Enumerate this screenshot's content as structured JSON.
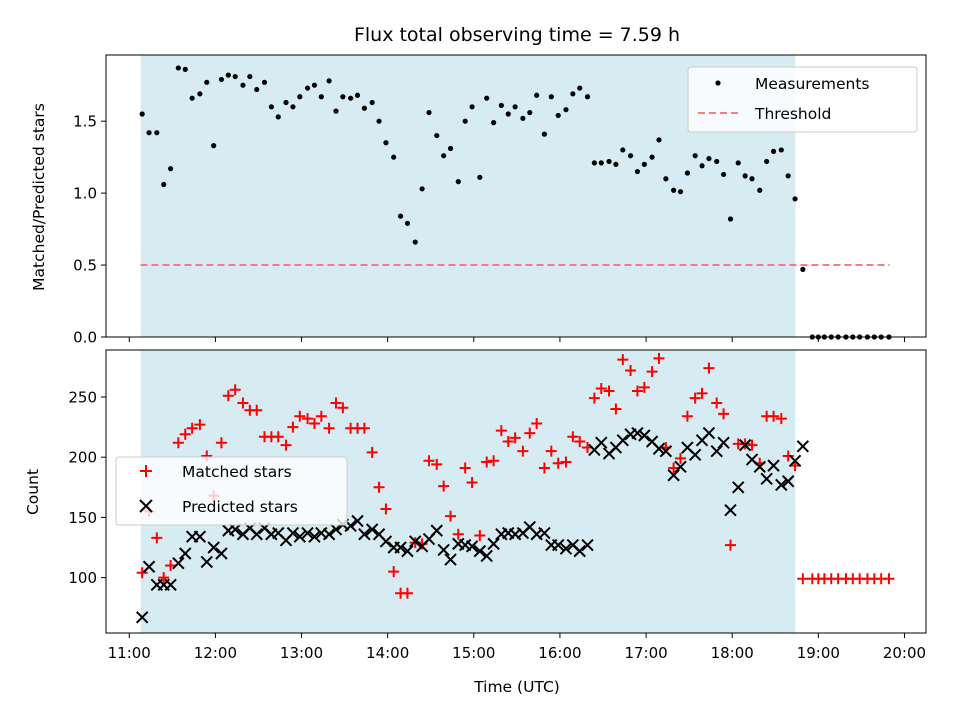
{
  "chart_data": {
    "title": "Flux total observing time = 7.59 h",
    "shaded_interval": {
      "start": 11.133,
      "end": 18.733,
      "color": "#add8e6",
      "opacity": 0.5
    },
    "xlabel": "Time (UTC)",
    "xlim": [
      10.73,
      20.25
    ],
    "xticks": [
      {
        "value": 11,
        "label": "11:00"
      },
      {
        "value": 12,
        "label": "12:00"
      },
      {
        "value": 13,
        "label": "13:00"
      },
      {
        "value": 14,
        "label": "14:00"
      },
      {
        "value": 15,
        "label": "15:00"
      },
      {
        "value": 16,
        "label": "16:00"
      },
      {
        "value": 17,
        "label": "17:00"
      },
      {
        "value": 18,
        "label": "18:00"
      },
      {
        "value": 19,
        "label": "19:00"
      },
      {
        "value": 20,
        "label": "20:00"
      }
    ],
    "panels": [
      {
        "type": "scatter",
        "ylabel": "Matched/Predicted stars",
        "ylim": [
          0,
          1.96
        ],
        "yticks": [
          {
            "value": 0,
            "label": "0.0"
          },
          {
            "value": 0.5,
            "label": "0.5"
          },
          {
            "value": 1,
            "label": "1.0"
          },
          {
            "value": 1.5,
            "label": "1.5"
          }
        ],
        "legend": {
          "position": "top-right",
          "entries": [
            "Measurements",
            "Threshold"
          ]
        },
        "threshold": {
          "name": "Threshold",
          "value": 0.5,
          "x": [
            11.13,
            19.83
          ],
          "color": "#f08080",
          "dash": "dashed"
        },
        "series": [
          {
            "name": "Measurements",
            "marker": "dot",
            "color": "#000000",
            "x": [
              11.15,
              11.23,
              11.32,
              11.4,
              11.48,
              11.57,
              11.65,
              11.73,
              11.82,
              11.9,
              11.98,
              12.07,
              12.15,
              12.23,
              12.32,
              12.4,
              12.48,
              12.57,
              12.65,
              12.73,
              12.82,
              12.9,
              12.98,
              13.07,
              13.15,
              13.23,
              13.32,
              13.4,
              13.48,
              13.57,
              13.65,
              13.73,
              13.82,
              13.9,
              13.98,
              14.07,
              14.15,
              14.23,
              14.32,
              14.4,
              14.48,
              14.57,
              14.65,
              14.73,
              14.82,
              14.9,
              14.98,
              15.07,
              15.15,
              15.23,
              15.32,
              15.4,
              15.48,
              15.57,
              15.65,
              15.73,
              15.82,
              15.9,
              15.98,
              16.07,
              16.15,
              16.23,
              16.32,
              16.4,
              16.48,
              16.57,
              16.65,
              16.73,
              16.82,
              16.9,
              16.98,
              17.07,
              17.15,
              17.23,
              17.32,
              17.4,
              17.48,
              17.57,
              17.65,
              17.73,
              17.82,
              17.9,
              17.98,
              18.07,
              18.15,
              18.23,
              18.32,
              18.4,
              18.48,
              18.57,
              18.65,
              18.73,
              18.82,
              18.93,
              19.0,
              19.07,
              19.15,
              19.23,
              19.32,
              19.4,
              19.48,
              19.57,
              19.65,
              19.73,
              19.82
            ],
            "y": [
              1.55,
              1.42,
              1.42,
              1.06,
              1.17,
              1.87,
              1.86,
              1.66,
              1.69,
              1.77,
              1.33,
              1.79,
              1.82,
              1.81,
              1.75,
              1.81,
              1.72,
              1.77,
              1.6,
              1.53,
              1.63,
              1.6,
              1.67,
              1.73,
              1.75,
              1.67,
              1.78,
              1.57,
              1.67,
              1.66,
              1.68,
              1.59,
              1.63,
              1.5,
              1.35,
              1.25,
              0.84,
              0.79,
              0.66,
              1.03,
              1.56,
              1.4,
              1.26,
              1.31,
              1.08,
              1.5,
              1.6,
              1.11,
              1.66,
              1.49,
              1.61,
              1.55,
              1.6,
              1.52,
              1.56,
              1.68,
              1.41,
              1.67,
              1.54,
              1.58,
              1.69,
              1.73,
              1.67,
              1.21,
              1.21,
              1.22,
              1.2,
              1.3,
              1.26,
              1.15,
              1.2,
              1.25,
              1.37,
              1.1,
              1.02,
              1.01,
              1.14,
              1.26,
              1.19,
              1.24,
              1.22,
              1.13,
              0.82,
              1.21,
              1.12,
              1.1,
              1.02,
              1.22,
              1.29,
              1.3,
              1.12,
              0.96,
              0.47,
              0.0,
              0.0,
              0.0,
              0.0,
              0.0,
              0.0,
              0.0,
              0.0,
              0.0,
              0.0,
              0.0,
              0.0
            ]
          }
        ]
      },
      {
        "type": "scatter",
        "ylabel": "Count",
        "ylim": [
          54,
          289
        ],
        "yticks": [
          {
            "value": 100,
            "label": "100"
          },
          {
            "value": 150,
            "label": "150"
          },
          {
            "value": 200,
            "label": "200"
          },
          {
            "value": 250,
            "label": "250"
          }
        ],
        "legend": {
          "position": "center-left",
          "entries": [
            "Matched stars",
            "Predicted stars"
          ]
        },
        "series": [
          {
            "name": "Matched stars",
            "marker": "plus",
            "color": "#ff0000",
            "x": [
              11.15,
              11.23,
              11.32,
              11.4,
              11.48,
              11.57,
              11.65,
              11.73,
              11.82,
              11.9,
              11.98,
              12.07,
              12.15,
              12.23,
              12.32,
              12.4,
              12.48,
              12.57,
              12.65,
              12.73,
              12.82,
              12.9,
              12.98,
              13.07,
              13.15,
              13.23,
              13.32,
              13.4,
              13.48,
              13.57,
              13.65,
              13.73,
              13.82,
              13.9,
              13.98,
              14.07,
              14.15,
              14.23,
              14.32,
              14.4,
              14.48,
              14.57,
              14.65,
              14.73,
              14.82,
              14.9,
              14.98,
              15.07,
              15.15,
              15.23,
              15.32,
              15.4,
              15.48,
              15.57,
              15.65,
              15.73,
              15.82,
              15.9,
              15.98,
              16.07,
              16.15,
              16.23,
              16.32,
              16.4,
              16.48,
              16.57,
              16.65,
              16.73,
              16.82,
              16.9,
              16.98,
              17.07,
              17.15,
              17.23,
              17.32,
              17.4,
              17.48,
              17.57,
              17.65,
              17.73,
              17.82,
              17.9,
              17.98,
              18.07,
              18.15,
              18.23,
              18.32,
              18.4,
              18.48,
              18.57,
              18.65,
              18.73,
              18.82,
              18.93,
              19.0,
              19.07,
              19.15,
              19.23,
              19.32,
              19.4,
              19.48,
              19.57,
              19.65,
              19.73,
              19.82
            ],
            "y": [
              104,
              155,
              133,
              100,
              110,
              212,
              219,
              224,
              227,
              201,
              168,
              212,
              251,
              256,
              245,
              239,
              239,
              217,
              217,
              217,
              210,
              225,
              234,
              232,
              228,
              234,
              224,
              245,
              241,
              224,
              224,
              224,
              204,
              175,
              157,
              105,
              87,
              87,
              129,
              128,
              197,
              194,
              176,
              151,
              136,
              191,
              179,
              135,
              196,
              197,
              222,
              213,
              216,
              205,
              220,
              228,
              191,
              205,
              195,
              196,
              217,
              213,
              208,
              249,
              257,
              255,
              240,
              281,
              272,
              255,
              258,
              271,
              282,
              208,
              191,
              199,
              234,
              249,
              253,
              274,
              245,
              236,
              127,
              211,
              211,
              210,
              195,
              234,
              234,
              232,
              201,
              193,
              99,
              99,
              99,
              99,
              99,
              99,
              99,
              99,
              99,
              99,
              99,
              99,
              99
            ]
          },
          {
            "name": "Predicted stars",
            "marker": "x",
            "color": "#000000",
            "x": [
              11.15,
              11.23,
              11.32,
              11.4,
              11.48,
              11.57,
              11.65,
              11.73,
              11.82,
              11.9,
              11.98,
              12.07,
              12.15,
              12.23,
              12.32,
              12.4,
              12.48,
              12.57,
              12.65,
              12.73,
              12.82,
              12.9,
              12.98,
              13.07,
              13.15,
              13.23,
              13.32,
              13.4,
              13.48,
              13.57,
              13.65,
              13.73,
              13.82,
              13.9,
              13.98,
              14.07,
              14.15,
              14.23,
              14.32,
              14.4,
              14.48,
              14.57,
              14.65,
              14.73,
              14.82,
              14.9,
              14.98,
              15.07,
              15.15,
              15.23,
              15.32,
              15.4,
              15.48,
              15.57,
              15.65,
              15.73,
              15.82,
              15.9,
              15.98,
              16.07,
              16.15,
              16.23,
              16.32,
              16.4,
              16.48,
              16.57,
              16.65,
              16.73,
              16.82,
              16.9,
              16.98,
              17.07,
              17.15,
              17.23,
              17.32,
              17.4,
              17.48,
              17.57,
              17.65,
              17.73,
              17.82,
              17.9,
              17.98,
              18.07,
              18.15,
              18.23,
              18.32,
              18.4,
              18.48,
              18.57,
              18.65,
              18.73,
              18.82
            ],
            "y": [
              67,
              109,
              94,
              94,
              94,
              112,
              120,
              134,
              134,
              113,
              125,
              120,
              139,
              140,
              136,
              141,
              136,
              141,
              136,
              137,
              131,
              137,
              134,
              137,
              134,
              137,
              136,
              140,
              144,
              143,
              147,
              136,
              140,
              136,
              130,
              125,
              125,
              122,
              130,
              126,
              132,
              139,
              123,
              115,
              128,
              127,
              126,
              122,
              118,
              128,
              136,
              137,
              136,
              137,
              142,
              136,
              137,
              127,
              127,
              124,
              127,
              122,
              127,
              206,
              212,
              203,
              208,
              214,
              219,
              220,
              218,
              213,
              207,
              205,
              185,
              192,
              208,
              202,
              214,
              220,
              205,
              212,
              156,
              175,
              210,
              198,
              192,
              182,
              193,
              177,
              180,
              197,
              209
            ]
          }
        ]
      }
    ]
  }
}
